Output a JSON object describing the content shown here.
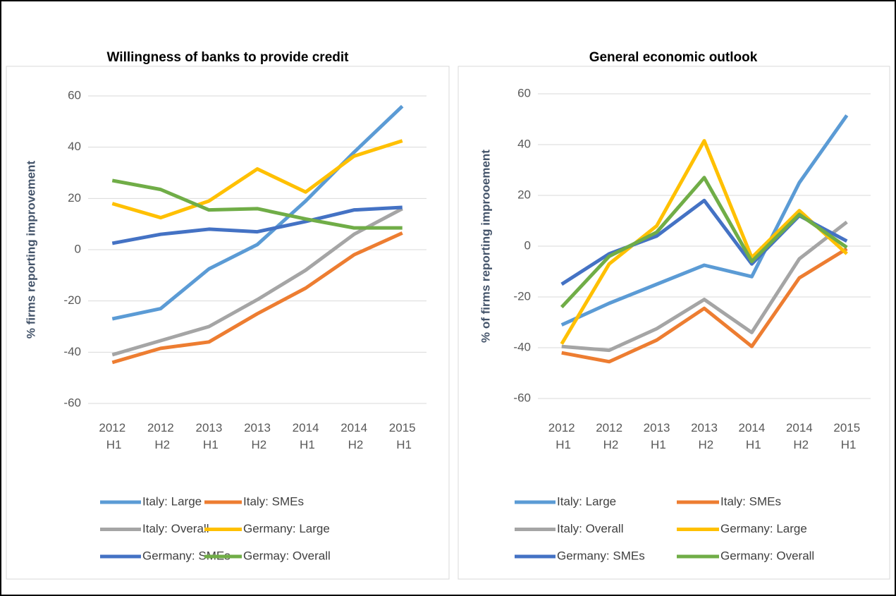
{
  "chart_data": [
    {
      "type": "line",
      "title": "Willingness of banks to provide credit",
      "y_label": "% firms reporting improvement",
      "categories": [
        "2012 H1",
        "2012 H2",
        "2013 H1",
        "2013 H2",
        "2014 H1",
        "2014 H2",
        "2015 H1"
      ],
      "ylim": [
        -60,
        60
      ],
      "yticks": [
        -60,
        -40,
        -20,
        0,
        20,
        40,
        60
      ],
      "grid": true,
      "series": [
        {
          "name": "Italy: Large",
          "color": "#5b9bd5",
          "values": [
            -27,
            -23,
            -7.5,
            2,
            19,
            38,
            56
          ]
        },
        {
          "name": "Italy: SMEs",
          "color": "#ed7d31",
          "values": [
            -44,
            -38.5,
            -36,
            -25,
            -15,
            -2,
            6.5
          ]
        },
        {
          "name": "Italy: Overall",
          "color": "#a5a5a5",
          "values": [
            -41,
            -35.5,
            -30,
            -19.5,
            -8,
            6,
            16
          ]
        },
        {
          "name": "Germany: Large",
          "color": "#ffc000",
          "values": [
            18,
            12.5,
            19,
            31.5,
            22.5,
            36.5,
            42.5
          ]
        },
        {
          "name": "Germany: SMEs",
          "color": "#4472c4",
          "values": [
            2.5,
            6,
            8,
            7,
            11,
            15.5,
            16.5
          ]
        },
        {
          "name": "Germay: Overall",
          "color": "#70ad47",
          "values": [
            27,
            23.5,
            15.5,
            16,
            12,
            8.5,
            8.5
          ]
        }
      ]
    },
    {
      "type": "line",
      "title": "General economic outlook",
      "y_label": "% of firms reporting improoement",
      "categories": [
        "2012 H1",
        "2012 H2",
        "2013 H1",
        "2013 H2",
        "2014 H1",
        "2014 H2",
        "2015 H1"
      ],
      "ylim": [
        -60,
        60
      ],
      "yticks": [
        -60,
        -40,
        -20,
        0,
        20,
        40,
        60
      ],
      "grid": true,
      "series": [
        {
          "name": "Italy: Large",
          "color": "#5b9bd5",
          "values": [
            -31,
            -22.5,
            -15,
            -7.5,
            -12,
            25,
            51.5
          ]
        },
        {
          "name": "Italy: SMEs",
          "color": "#ed7d31",
          "values": [
            -42,
            -45.5,
            -37,
            -24.5,
            -39.5,
            -12.5,
            -1
          ]
        },
        {
          "name": "Italy: Overall",
          "color": "#a5a5a5",
          "values": [
            -39.5,
            -41,
            -32.5,
            -21,
            -34,
            -5,
            9.5
          ]
        },
        {
          "name": "Germany: Large",
          "color": "#ffc000",
          "values": [
            -38.5,
            -7,
            8,
            41.5,
            -4.5,
            14,
            -3
          ]
        },
        {
          "name": "Germany: SMEs",
          "color": "#4472c4",
          "values": [
            -15,
            -3,
            4,
            18,
            -7,
            12,
            2
          ]
        },
        {
          "name": "Germany: Overall",
          "color": "#70ad47",
          "values": [
            -24,
            -4,
            5.5,
            27,
            -6,
            12.5,
            -0.5
          ]
        }
      ]
    }
  ]
}
